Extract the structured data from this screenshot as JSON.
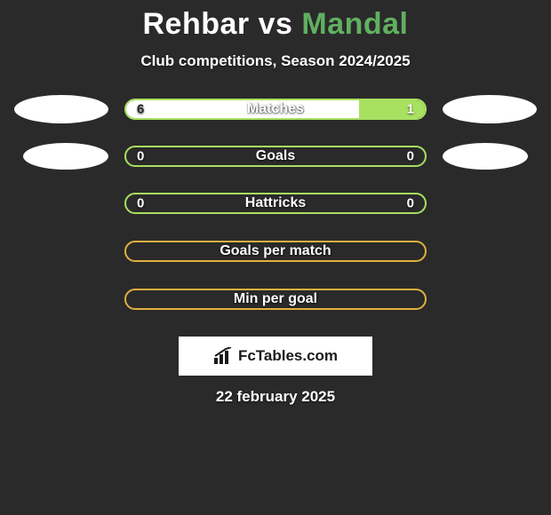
{
  "title": {
    "player1": "Rehbar",
    "vs": "vs",
    "player2": "Mandal"
  },
  "subtitle": "Club competitions, Season 2024/2025",
  "colors": {
    "player1": "#ffffff",
    "player2": "#a8e060",
    "player2_border": "#a8e060",
    "player1_title": "#ffffff",
    "player2_title": "#60b060",
    "bar_bg": "#2a2a2a"
  },
  "stats": [
    {
      "label": "Matches",
      "left_value": "6",
      "right_value": "1",
      "left_fill_pct": 78,
      "right_fill_pct": 22,
      "left_color": "#ffffff",
      "right_color": "#a8e060",
      "border_color": "#a8e060",
      "show_left_ellipse": true,
      "show_right_ellipse": true,
      "show_values": true
    },
    {
      "label": "Goals",
      "left_value": "0",
      "right_value": "0",
      "left_fill_pct": 0,
      "right_fill_pct": 0,
      "left_color": "#ffffff",
      "right_color": "#a8e060",
      "border_color": "#a8e060",
      "show_left_ellipse": true,
      "show_right_ellipse": true,
      "show_values": true,
      "ellipse_narrow": true
    },
    {
      "label": "Hattricks",
      "left_value": "0",
      "right_value": "0",
      "left_fill_pct": 0,
      "right_fill_pct": 0,
      "left_color": "#ffffff",
      "right_color": "#a8e060",
      "border_color": "#a8e060",
      "show_left_ellipse": false,
      "show_right_ellipse": false,
      "show_values": true
    },
    {
      "label": "Goals per match",
      "left_value": "",
      "right_value": "",
      "left_fill_pct": 0,
      "right_fill_pct": 0,
      "left_color": "#ffffff",
      "right_color": "#a8e060",
      "border_color": "#e0b040",
      "show_left_ellipse": false,
      "show_right_ellipse": false,
      "show_values": false
    },
    {
      "label": "Min per goal",
      "left_value": "",
      "right_value": "",
      "left_fill_pct": 0,
      "right_fill_pct": 0,
      "left_color": "#ffffff",
      "right_color": "#a8e060",
      "border_color": "#e0b040",
      "show_left_ellipse": false,
      "show_right_ellipse": false,
      "show_values": false
    }
  ],
  "brand": "FcTables.com",
  "date": "22 february 2025"
}
